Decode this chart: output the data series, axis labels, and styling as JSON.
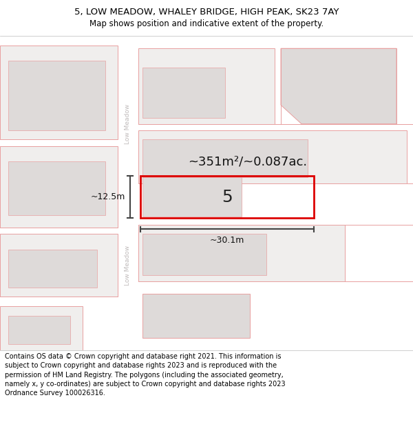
{
  "title_line1": "5, LOW MEADOW, WHALEY BRIDGE, HIGH PEAK, SK23 7AY",
  "title_line2": "Map shows position and indicative extent of the property.",
  "footer_text": "Contains OS data © Crown copyright and database right 2021. This information is subject to Crown copyright and database rights 2023 and is reproduced with the permission of HM Land Registry. The polygons (including the associated geometry, namely x, y co-ordinates) are subject to Crown copyright and database rights 2023 Ordnance Survey 100026316.",
  "area_label": "~351m²/~0.087ac.",
  "number_label": "5",
  "width_label": "~30.1m",
  "height_label": "~12.5m",
  "road_label": "Low Meadow",
  "map_bg": "#f7f5f5",
  "plot_fill": "#f0eeed",
  "plot_outline": "#dd0000",
  "building_fill": "#dedad9",
  "parcel_fill": "#f0eeed",
  "parcel_outline": "#e8a0a0",
  "road_color": "#ffffff",
  "road_label_color": "#c0bbbb",
  "arrow_color": "#444444",
  "title_fontsize": 9.5,
  "subtitle_fontsize": 8.5,
  "footer_fontsize": 7.0,
  "area_fontsize": 13,
  "number_fontsize": 18,
  "dim_fontsize": 9
}
